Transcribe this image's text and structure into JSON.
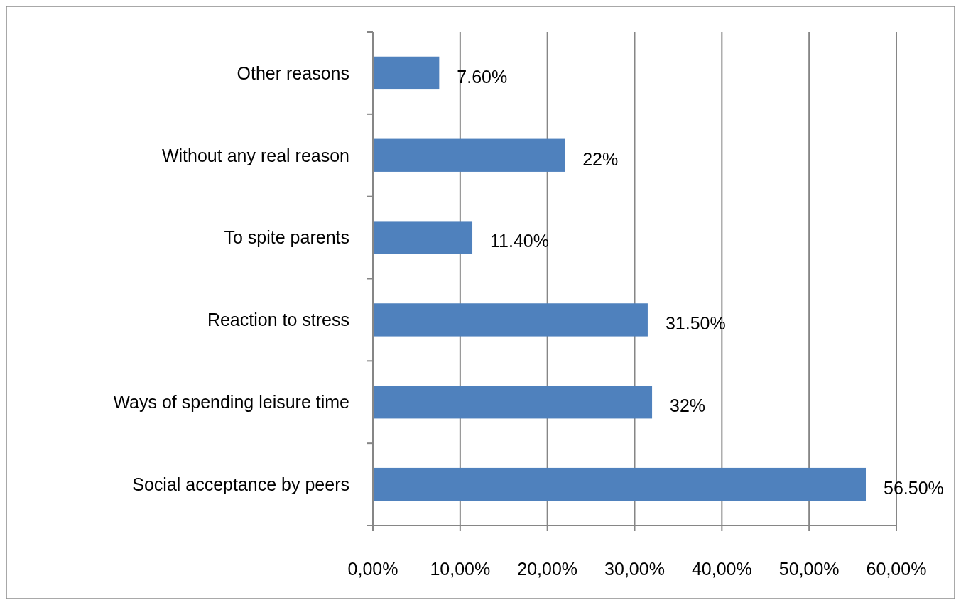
{
  "chart_data": {
    "type": "bar",
    "orientation": "horizontal",
    "categories": [
      "Other reasons",
      "Without any real reason",
      "To spite parents",
      "Reaction to stress",
      "Ways of spending leisure time",
      "Social acceptance by peers"
    ],
    "values": [
      7.6,
      22,
      11.4,
      31.5,
      32,
      56.5
    ],
    "value_labels": [
      "7.60%",
      "22%",
      "11.40%",
      "31.50%",
      "32%",
      "56.50%"
    ],
    "color": "#4f81bd",
    "xlim": [
      0,
      60
    ],
    "xticks": [
      {
        "value": 0,
        "label": "0,00%"
      },
      {
        "value": 10,
        "label": "10,00%"
      },
      {
        "value": 20,
        "label": "20,00%"
      },
      {
        "value": 30,
        "label": "30,00%"
      },
      {
        "value": 40,
        "label": "40,00%"
      },
      {
        "value": 50,
        "label": "50,00%"
      },
      {
        "value": 60,
        "label": "60,00%"
      }
    ],
    "grid": "x"
  }
}
